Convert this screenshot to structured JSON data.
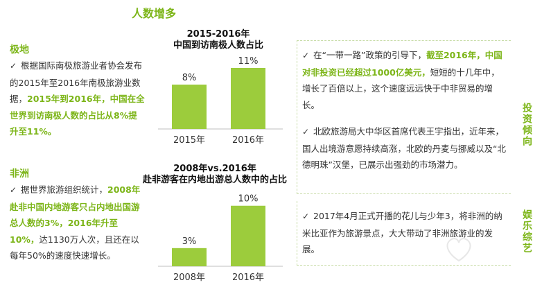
{
  "page": {
    "title": "人数增多"
  },
  "left": {
    "antarctic": {
      "heading": "极地",
      "text_normal": "根据国际南极旅游业者协会发布的2015年至2016年南极旅游业数据，",
      "text_highlight": "2015年到2016年，中国在全世界到访南极人数的占比从8%提升至11%。"
    },
    "africa": {
      "heading": "非洲",
      "text_normal_1": "据世界旅游组织统计，",
      "text_highlight": "2008年赴非中国内地游客只占内地出国游总人数的3%，2016年升至10%，",
      "text_normal_2": "达1130万人次，且还在以每年50%的速度快速增长。"
    }
  },
  "charts": {
    "top_title_1": "2015-2016年",
    "top_title_2": "中国到访南极人数占比",
    "bottom_title_1": "2008年vs.2016年",
    "bottom_title_2": "赴非游客在内地出游总人数中的占比"
  },
  "chart_data": [
    {
      "type": "bar",
      "title": "2015-2016年 中国到访南极人数占比",
      "categories": [
        "2015年",
        "2016年"
      ],
      "values": [
        8,
        11
      ],
      "value_labels": [
        "8%",
        "11%"
      ],
      "ylim": [
        0,
        12
      ]
    },
    {
      "type": "bar",
      "title": "2008年vs.2016年 赴非游客在内地出游总人数中的占比",
      "categories": [
        "2008年",
        "2016年"
      ],
      "values": [
        3,
        10
      ],
      "value_labels": [
        "3%",
        "10%"
      ],
      "ylim": [
        0,
        11
      ]
    }
  ],
  "right": {
    "investment": {
      "tag": "投资倾向",
      "item1_pre": "在“一带一路”政策的引导下，",
      "item1_highlight": "截至2016年，中国对非投资已经超过1000亿美元，",
      "item1_post": "短短的十几年中，增长了百倍以上，这个速度远远快于中非贸易的增长。",
      "item2": "北欧旅游局大中华区首席代表王宇指出，近年来，国人出境游意愿持续高涨，北欧的丹麦与挪威以及“北德明珠”汉堡，已展示出强劲的市场潜力。"
    },
    "entertainment": {
      "tag": "娱乐综艺",
      "item1": "2017年4月正式开播的花儿与少年3，将非洲的纳米比亚作为旅游景点，大大带动了非洲旅游业的发展。"
    }
  },
  "colors": {
    "accent": "#7cb518",
    "bar": "#9ccc3c",
    "text": "#333333"
  },
  "icons": {
    "check": "check-icon"
  }
}
